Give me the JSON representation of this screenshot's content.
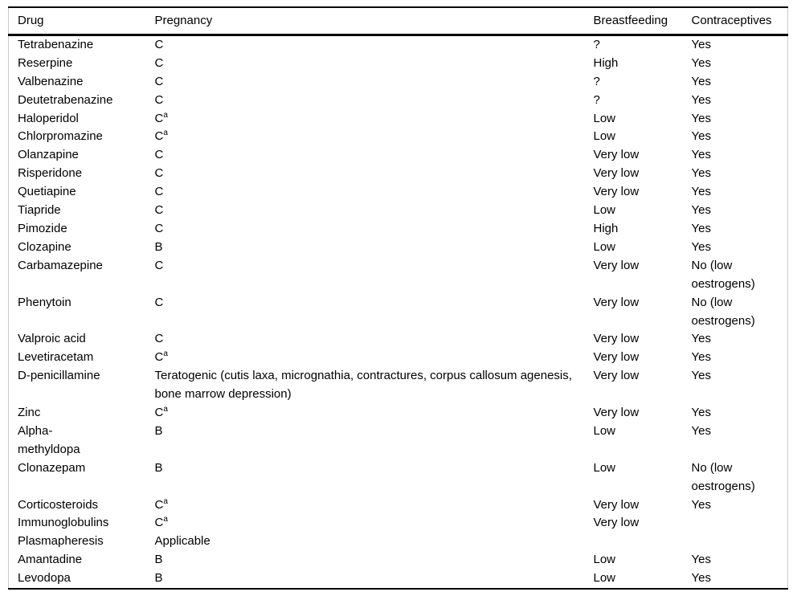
{
  "table": {
    "columns": [
      {
        "label": "Drug"
      },
      {
        "label": "Pregnancy"
      },
      {
        "label": "Breastfeeding"
      },
      {
        "label": "Contraceptives"
      }
    ],
    "rows": [
      {
        "drug": "Tetrabenazine",
        "pregnancy": "C",
        "pregnancy_sup": "",
        "breastfeeding": "?",
        "contraceptives": "Yes"
      },
      {
        "drug": "Reserpine",
        "pregnancy": "C",
        "pregnancy_sup": "",
        "breastfeeding": "High",
        "contraceptives": "Yes"
      },
      {
        "drug": "Valbenazine",
        "pregnancy": "C",
        "pregnancy_sup": "",
        "breastfeeding": "?",
        "contraceptives": "Yes"
      },
      {
        "drug": "Deutetrabenazine",
        "pregnancy": "C",
        "pregnancy_sup": "",
        "breastfeeding": "?",
        "contraceptives": "Yes"
      },
      {
        "drug": "Haloperidol",
        "pregnancy": "C",
        "pregnancy_sup": "a",
        "breastfeeding": "Low",
        "contraceptives": "Yes"
      },
      {
        "drug": "Chlorpromazine",
        "pregnancy": "C",
        "pregnancy_sup": "a",
        "breastfeeding": "Low",
        "contraceptives": "Yes"
      },
      {
        "drug": "Olanzapine",
        "pregnancy": "C",
        "pregnancy_sup": "",
        "breastfeeding": "Very low",
        "contraceptives": "Yes"
      },
      {
        "drug": "Risperidone",
        "pregnancy": "C",
        "pregnancy_sup": "",
        "breastfeeding": "Very low",
        "contraceptives": "Yes"
      },
      {
        "drug": "Quetiapine",
        "pregnancy": "C",
        "pregnancy_sup": "",
        "breastfeeding": "Very low",
        "contraceptives": "Yes"
      },
      {
        "drug": "Tiapride",
        "pregnancy": "C",
        "pregnancy_sup": "",
        "breastfeeding": "Low",
        "contraceptives": "Yes"
      },
      {
        "drug": "Pimozide",
        "pregnancy": "C",
        "pregnancy_sup": "",
        "breastfeeding": "High",
        "contraceptives": "Yes"
      },
      {
        "drug": "Clozapine",
        "pregnancy": "B",
        "pregnancy_sup": "",
        "breastfeeding": "Low",
        "contraceptives": "Yes"
      },
      {
        "drug": "Carbamazepine",
        "pregnancy": "C",
        "pregnancy_sup": "",
        "breastfeeding": "Very low",
        "contraceptives": "No (low oestrogens)"
      },
      {
        "drug": "Phenytoin",
        "pregnancy": "C",
        "pregnancy_sup": "",
        "breastfeeding": "Very low",
        "contraceptives": "No (low oestrogens)"
      },
      {
        "drug": "Valproic acid",
        "pregnancy": "C",
        "pregnancy_sup": "",
        "breastfeeding": "Very low",
        "contraceptives": "Yes"
      },
      {
        "drug": "Levetiracetam",
        "pregnancy": "C",
        "pregnancy_sup": "a",
        "breastfeeding": "Very low",
        "contraceptives": "Yes"
      },
      {
        "drug": "D-penicillamine",
        "pregnancy": "Teratogenic (cutis laxa, micrognathia, contractures, corpus callosum agenesis, bone marrow depression)",
        "pregnancy_sup": "",
        "breastfeeding": "Very low",
        "contraceptives": "Yes"
      },
      {
        "drug": "Zinc",
        "pregnancy": "C",
        "pregnancy_sup": "a",
        "breastfeeding": "Very low",
        "contraceptives": "Yes"
      },
      {
        "drug": "Alpha-\nmethyldopa",
        "pregnancy": "B",
        "pregnancy_sup": "",
        "breastfeeding": "Low",
        "contraceptives": "Yes"
      },
      {
        "drug": "Clonazepam",
        "pregnancy": "B",
        "pregnancy_sup": "",
        "breastfeeding": "Low",
        "contraceptives": "No (low oestrogens)"
      },
      {
        "drug": "Corticosteroids",
        "pregnancy": "C",
        "pregnancy_sup": "a",
        "breastfeeding": "Very low",
        "contraceptives": "Yes"
      },
      {
        "drug": "Immunoglobulins",
        "pregnancy": "C",
        "pregnancy_sup": "a",
        "breastfeeding": "Very low",
        "contraceptives": ""
      },
      {
        "drug": "Plasmapheresis",
        "pregnancy": "Applicable",
        "pregnancy_sup": "",
        "breastfeeding": "",
        "contraceptives": ""
      },
      {
        "drug": "Amantadine",
        "pregnancy": "B",
        "pregnancy_sup": "",
        "breastfeeding": "Low",
        "contraceptives": "Yes"
      },
      {
        "drug": "Levodopa",
        "pregnancy": "B",
        "pregnancy_sup": "",
        "breastfeeding": "Low",
        "contraceptives": "Yes"
      }
    ]
  }
}
